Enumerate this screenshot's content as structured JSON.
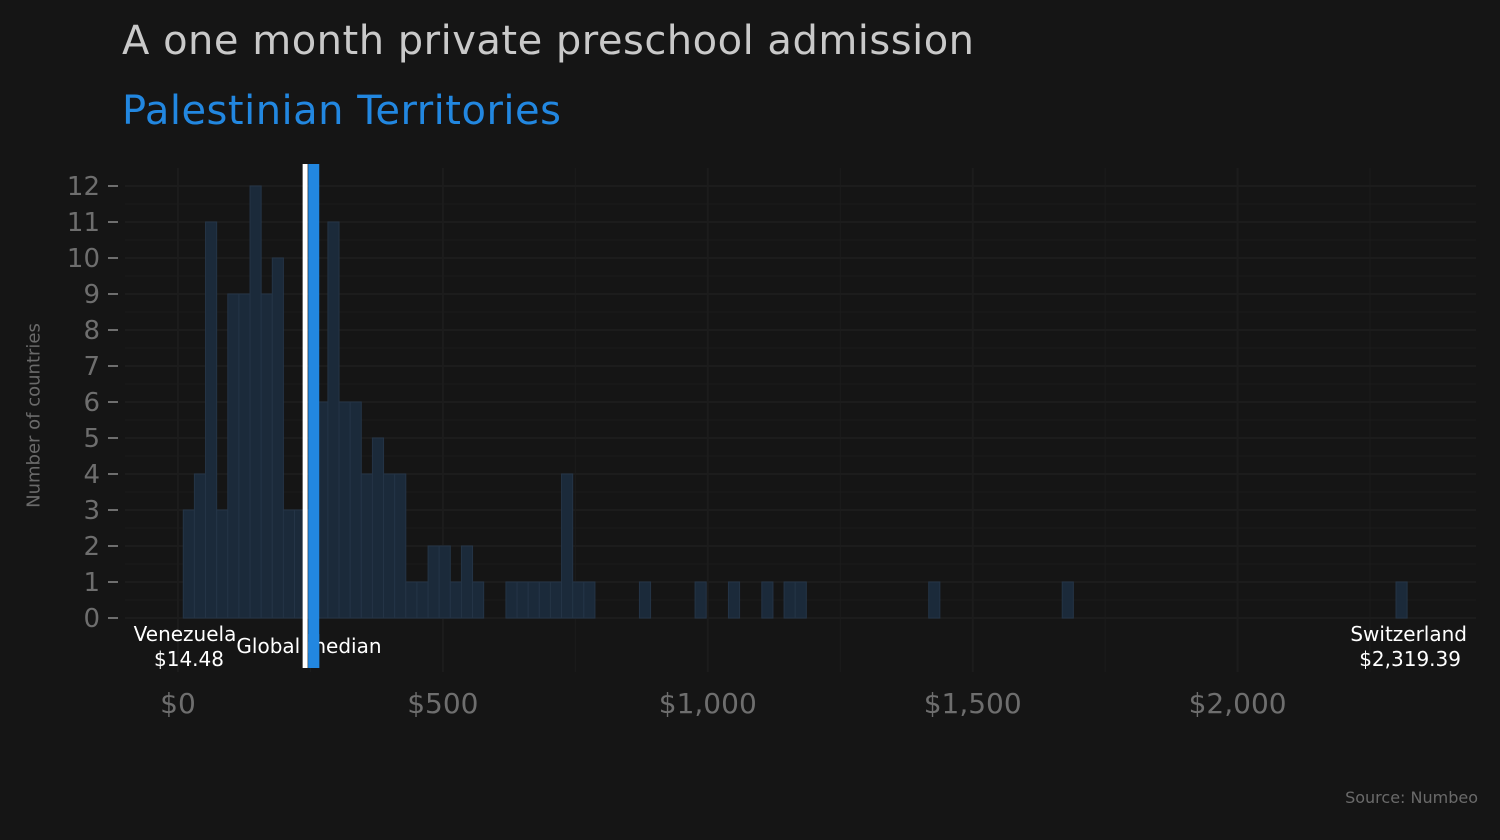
{
  "chart_data": {
    "type": "bar",
    "title": "A one month private preschool admission",
    "subtitle": "Palestinian Territories",
    "ylabel": "Number of countries",
    "caption": "Source: Numbeo",
    "x_tick_labels": [
      "$0",
      "$500",
      "$1,000",
      "$1,500",
      "$2,000"
    ],
    "x_ticks": [
      0,
      500,
      1000,
      1500,
      2000
    ],
    "y_tick_labels": [
      "0",
      "1",
      "2",
      "3",
      "4",
      "5",
      "6",
      "7",
      "8",
      "9",
      "10",
      "11",
      "12"
    ],
    "xlim": [
      -100,
      2450
    ],
    "ylim": [
      -1.5,
      12.5
    ],
    "bin_width": 21,
    "bin_starts": [
      10,
      31,
      52,
      73,
      94,
      115,
      136,
      157,
      178,
      199,
      220,
      241,
      262,
      283,
      304,
      325,
      346,
      367,
      388,
      409,
      430,
      451,
      472,
      493,
      514,
      535,
      556,
      619,
      640,
      661,
      682,
      703,
      724,
      745,
      766,
      871,
      976,
      1039,
      1102,
      1144,
      1165,
      1417,
      1669,
      2299
    ],
    "values": [
      3,
      4,
      11,
      3,
      9,
      9,
      12,
      9,
      10,
      3,
      3,
      3,
      6,
      11,
      6,
      6,
      4,
      5,
      4,
      4,
      1,
      1,
      2,
      2,
      1,
      2,
      1,
      1,
      1,
      1,
      1,
      1,
      4,
      1,
      1,
      1,
      1,
      1,
      1,
      1,
      1,
      1,
      1,
      1
    ],
    "highlight": {
      "label": "Palestinian Territories",
      "value": 260,
      "color": "#2287e0"
    },
    "median": {
      "label": "Global median",
      "value": 240
    },
    "min_annotation": {
      "country": "Venezuela",
      "label": "$14.48",
      "value": 14.48
    },
    "max_annotation": {
      "country": "Switzerland",
      "label": "$2,319.39",
      "value": 2319.39
    },
    "colors": {
      "background": "#151515",
      "bar_fill": "#1b2a3a",
      "bar_stroke": "#243446",
      "grid": "#1c1c1c",
      "median": "#ffffff",
      "highlight": "#2287e0"
    },
    "grid": true
  }
}
